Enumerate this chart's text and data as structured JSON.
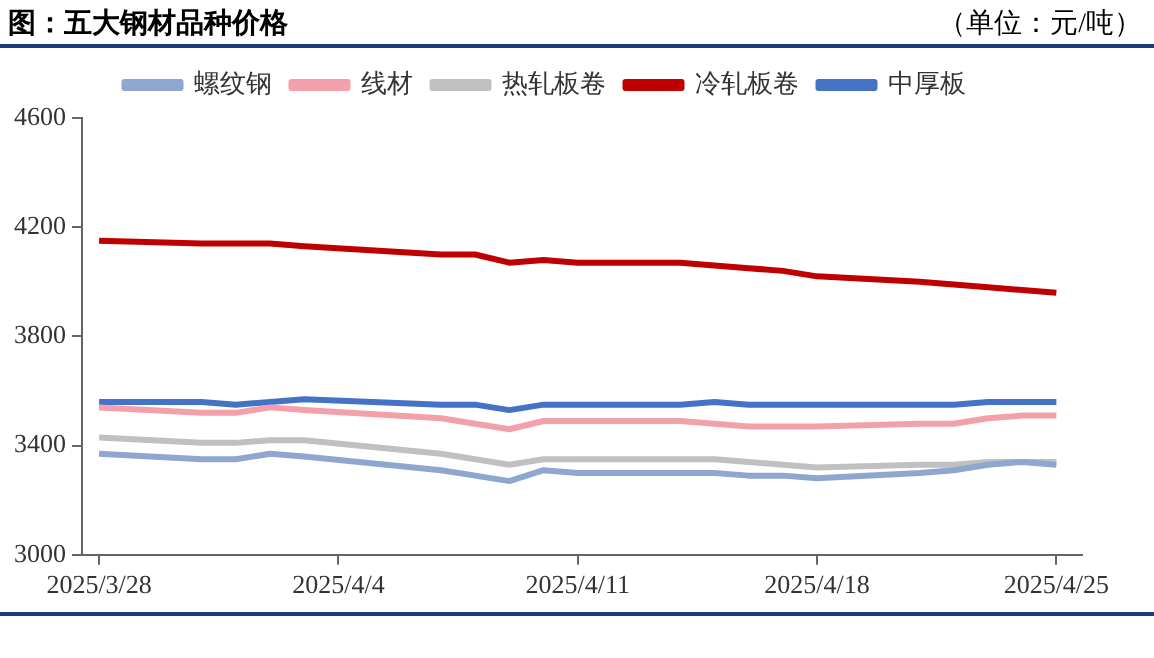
{
  "chart_data": {
    "type": "line",
    "title": "图：五大钢材品种价格",
    "subtitle": "（单位：元/吨）",
    "x": [
      "2025-03-28",
      "2025-03-31",
      "2025-04-01",
      "2025-04-02",
      "2025-04-03",
      "2025-04-07",
      "2025-04-08",
      "2025-04-09",
      "2025-04-10",
      "2025-04-11",
      "2025-04-14",
      "2025-04-15",
      "2025-04-16",
      "2025-04-17",
      "2025-04-18",
      "2025-04-21",
      "2025-04-22",
      "2025-04-23",
      "2025-04-24",
      "2025-04-25"
    ],
    "series": [
      {
        "name": "螺纹钢",
        "color": "#8ea7cf",
        "values": [
          3370,
          3350,
          3350,
          3370,
          3360,
          3310,
          3290,
          3270,
          3310,
          3300,
          3300,
          3300,
          3290,
          3290,
          3280,
          3300,
          3310,
          3330,
          3340,
          3330
        ]
      },
      {
        "name": "线材",
        "color": "#f4a0aa",
        "values": [
          3540,
          3520,
          3520,
          3540,
          3530,
          3500,
          3480,
          3460,
          3490,
          3490,
          3490,
          3480,
          3470,
          3470,
          3470,
          3480,
          3480,
          3500,
          3510,
          3510
        ]
      },
      {
        "name": "热轧板卷",
        "color": "#c0c0c0",
        "values": [
          3430,
          3410,
          3410,
          3420,
          3420,
          3370,
          3350,
          3330,
          3350,
          3350,
          3350,
          3350,
          3340,
          3330,
          3320,
          3330,
          3330,
          3340,
          3340,
          3340
        ]
      },
      {
        "name": "冷轧板卷",
        "color": "#c00000",
        "values": [
          4150,
          4140,
          4140,
          4140,
          4130,
          4100,
          4100,
          4070,
          4080,
          4070,
          4070,
          4060,
          4050,
          4040,
          4020,
          4000,
          3990,
          3980,
          3970,
          3960
        ]
      },
      {
        "name": "中厚板",
        "color": "#4472c4",
        "values": [
          3560,
          3560,
          3550,
          3560,
          3570,
          3550,
          3550,
          3530,
          3550,
          3550,
          3550,
          3560,
          3550,
          3550,
          3550,
          3550,
          3550,
          3560,
          3560,
          3560
        ]
      }
    ],
    "xlim": [
      "2025-03-27T12:00",
      "2025-04-25T18:00"
    ],
    "xticks": [
      {
        "value": "2025-03-28",
        "label": "2025/3/28"
      },
      {
        "value": "2025-04-04",
        "label": "2025/4/4"
      },
      {
        "value": "2025-04-11",
        "label": "2025/4/11"
      },
      {
        "value": "2025-04-18",
        "label": "2025/4/18"
      },
      {
        "value": "2025-04-25",
        "label": "2025/4/25"
      }
    ],
    "ylim": [
      3000,
      4600
    ],
    "yticks": [
      3000,
      3400,
      3800,
      4200,
      4600
    ],
    "grid": false,
    "legend": "top",
    "marker": "none",
    "line_style": "solid"
  }
}
